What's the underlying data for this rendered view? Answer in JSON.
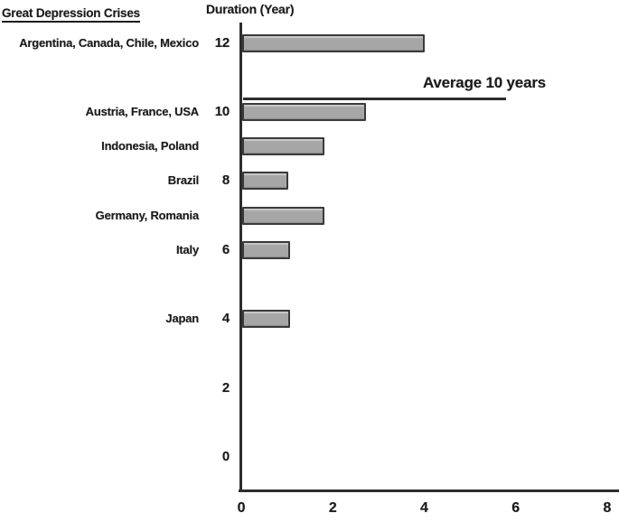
{
  "chart_data": {
    "type": "bar",
    "orientation": "horizontal",
    "title": "Great Depression Crises",
    "value_axis_label": "Duration (Year)",
    "count_axis_range": [
      0,
      8
    ],
    "duration_axis_range": [
      0,
      13
    ],
    "duration_ticks": [
      12,
      10,
      8,
      6,
      4,
      2,
      0
    ],
    "count_ticks": [
      0,
      2,
      4,
      6,
      8
    ],
    "grid": "off",
    "bars": [
      {
        "label": "Argentina, Canada, Chile, Mexico",
        "duration": 12,
        "value": 4.0
      },
      {
        "label": "Austria, France, USA",
        "duration": 10,
        "value": 2.7
      },
      {
        "label": "Indonesia, Poland",
        "duration": 9,
        "value": 1.8
      },
      {
        "label": "Brazil",
        "duration": 8,
        "value": 1.0
      },
      {
        "label": "Germany, Romania",
        "duration": 7,
        "value": 1.8
      },
      {
        "label": "Italy",
        "duration": 6,
        "value": 1.05
      },
      {
        "label": "Japan",
        "duration": 4,
        "value": 1.05
      }
    ],
    "annotation": {
      "label": "Average 10 years",
      "at_duration": 10,
      "line_length": 5.75
    }
  },
  "colors": {
    "bar_fill": "#a6a6a6",
    "bar_border": "#3a3a3a",
    "axis": "#2d2d2d",
    "text": "#1b1b1b",
    "background": "#ffffff"
  }
}
